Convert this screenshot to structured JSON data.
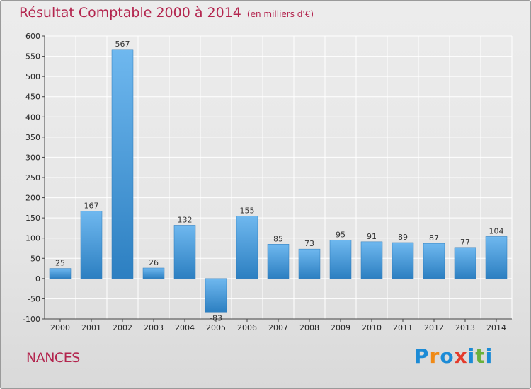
{
  "header": {
    "title": "Résultat Comptable 2000 à 2014",
    "unit": "(en milliers d'€)"
  },
  "footer": {
    "place": "NANCES",
    "logo_letters": [
      "P",
      "r",
      "o",
      "x",
      "i",
      "t",
      "i"
    ],
    "logo_colors": [
      "#1c8bd6",
      "#f08a16",
      "#1c8bd6",
      "#e43b2c",
      "#1c8bd6",
      "#6ab13c",
      "#1c8bd6"
    ]
  },
  "colors": {
    "title": "#b3254e",
    "bar_light": "#6fb8ef",
    "bar_dark": "#2c7fc1",
    "grid": "#ffffff"
  },
  "chart_data": {
    "type": "bar",
    "title": "Résultat Comptable 2000 à 2014",
    "subtitle": "(en milliers d'€)",
    "categories": [
      "2000",
      "2001",
      "2002",
      "2003",
      "2004",
      "2005",
      "2006",
      "2007",
      "2008",
      "2009",
      "2010",
      "2011",
      "2012",
      "2013",
      "2014"
    ],
    "values": [
      25,
      167,
      567,
      26,
      132,
      -83,
      155,
      85,
      73,
      95,
      91,
      89,
      87,
      77,
      104
    ],
    "ylim": [
      -100,
      600
    ],
    "yticks": [
      -100,
      -50,
      0,
      50,
      100,
      150,
      200,
      250,
      300,
      350,
      400,
      450,
      500,
      550,
      600
    ],
    "grid": true,
    "xlabel": "",
    "ylabel": ""
  }
}
